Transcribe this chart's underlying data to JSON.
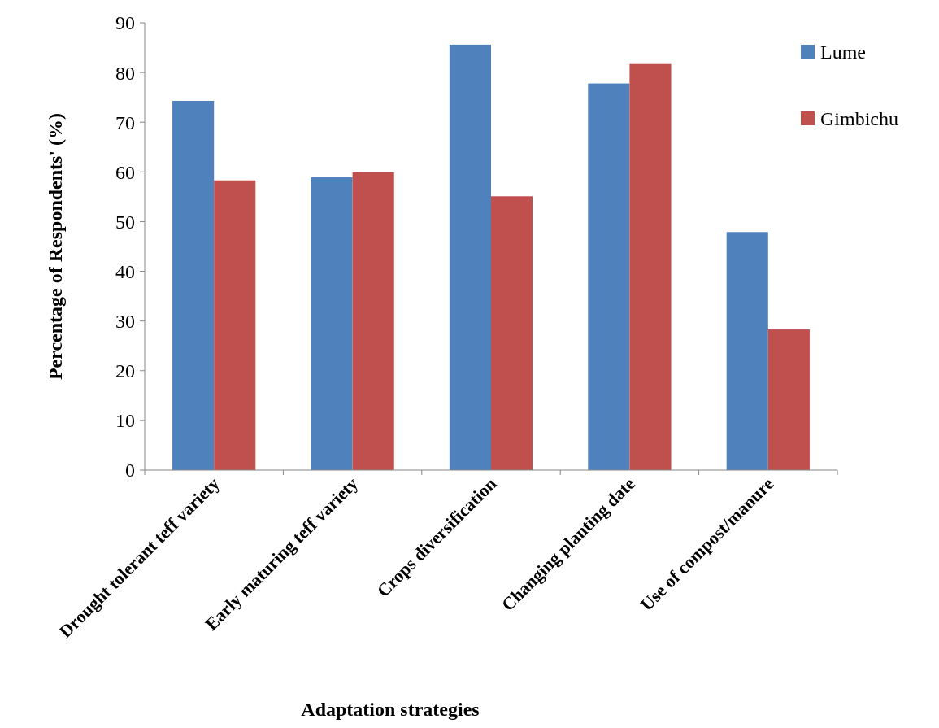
{
  "chart_data": {
    "type": "bar",
    "xlabel": "Adaptation strategies",
    "ylabel": "Percentage of Respondents' (%)",
    "categories": [
      "Drought tolerant teff variety",
      "Early maturing teff variety",
      "Crops diversification",
      "Changing planting date",
      "Use of compost/manure"
    ],
    "series": [
      {
        "name": "Lume",
        "color": "#4f81bd",
        "values": [
          74.3,
          58.9,
          85.6,
          77.8,
          47.9
        ]
      },
      {
        "name": "Gimbichu",
        "color": "#c0504d",
        "values": [
          58.3,
          59.9,
          55.1,
          81.7,
          28.3
        ]
      }
    ],
    "ylim": [
      0,
      90
    ],
    "yticks": [
      0,
      10,
      20,
      30,
      40,
      50,
      60,
      70,
      80,
      90
    ],
    "grid": false,
    "legend": "right"
  }
}
